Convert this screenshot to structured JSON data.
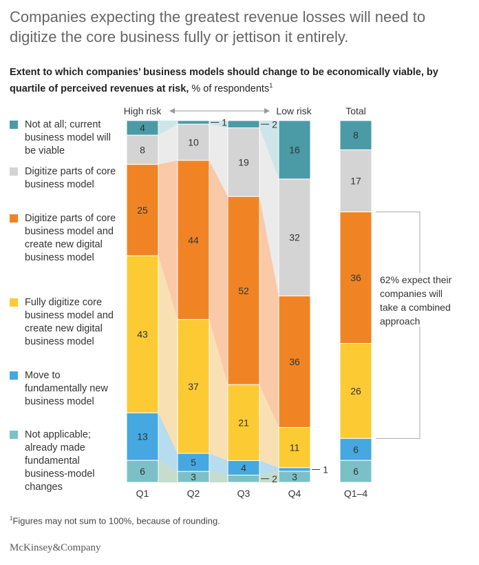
{
  "title": "Companies expecting the greatest revenue losses will need to digitize the core business fully or jettison it entirely.",
  "subtitle": {
    "main": "Extent to which companies’ business models should change to be economically viable, by quartile of perceived revenues at risk,",
    "unit": "% of respondents",
    "footnote_ref": "1"
  },
  "footnote": {
    "marker": "1",
    "text": "Figures may not sum to 100%, because of rounding."
  },
  "source": "McKinsey&Company",
  "chart_data": {
    "type": "bar",
    "stacked": true,
    "categories": [
      "Q1",
      "Q2",
      "Q3",
      "Q4"
    ],
    "total_category": "Q1–4",
    "total_header": "Total",
    "risk_axis": {
      "high_label": "High risk",
      "low_label": "Low risk"
    },
    "series": [
      {
        "name": "Not at all; current business model will be viable",
        "color": "#4a9ba6",
        "values": [
          4,
          1,
          2,
          16
        ],
        "total": 8
      },
      {
        "name": "Digitize parts of core business model",
        "color": "#d4d4d4",
        "values": [
          8,
          10,
          19,
          32
        ],
        "total": 17
      },
      {
        "name": "Digitize parts of core business model and create new digital business model",
        "color": "#f08424",
        "values": [
          25,
          44,
          52,
          36
        ],
        "total": 36
      },
      {
        "name": "Fully digitize core business model and create new digital business model",
        "color": "#fccb33",
        "values": [
          43,
          37,
          21,
          11
        ],
        "total": 26
      },
      {
        "name": "Move to fundamentally new business model",
        "color": "#45a8e0",
        "values": [
          13,
          5,
          4,
          1
        ],
        "total": 6
      },
      {
        "name": "Not applicable; already made fundamental business-model changes",
        "color": "#7cc0c7",
        "values": [
          6,
          3,
          2,
          3
        ],
        "total": 6
      }
    ],
    "annotation": "62% expect their companies will take a combined approach",
    "ylim": [
      0,
      100
    ]
  }
}
